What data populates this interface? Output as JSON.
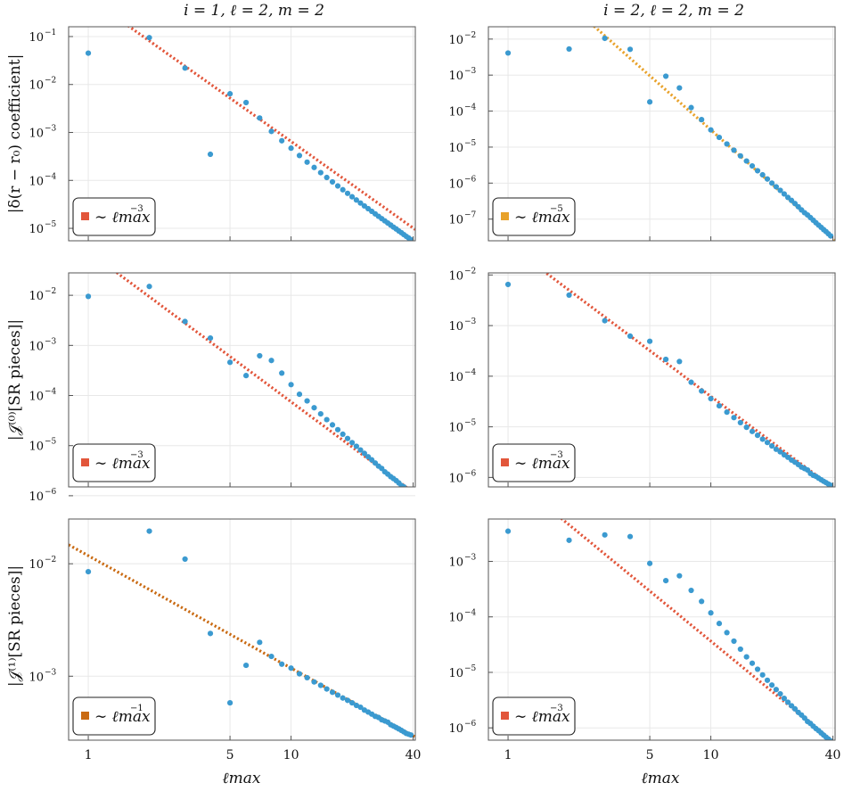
{
  "figure": {
    "col_titles": [
      "i = 1, ℓ = 2, m = 2",
      "i = 2, ℓ = 2, m = 2"
    ],
    "row_ylabels": [
      "|δ(r − r₀) coefficient|",
      "|𝒥⁽⁰⁾[SR pieces]|",
      "|𝒥⁽¹⁾[SR pieces]|"
    ],
    "xlabel": "ℓmax",
    "xticks": [
      "1",
      "5",
      "10",
      "40"
    ],
    "colors": {
      "points": "#3b9ad0",
      "fit_red": "#e2563b",
      "fit_orange": "#e8a22b",
      "fit_brown": "#c96a12",
      "grid": "#e8e8e8",
      "frame": "#555555"
    }
  },
  "chart_data": [
    {
      "type": "scatter",
      "panel": "top-left",
      "title": "i = 1, ℓ = 2, m = 2",
      "ylabel": "|δ(r − r₀) coefficient|",
      "xlabel": "",
      "xscale": "log",
      "yscale": "log",
      "xlim": [
        0.8,
        41
      ],
      "ylim": [
        5.5e-06,
        0.16
      ],
      "yticks": [
        {
          "v": 1e-05,
          "e": "−5"
        },
        {
          "v": 0.0001,
          "e": "−4"
        },
        {
          "v": 0.001,
          "e": "−3"
        },
        {
          "v": 0.01,
          "e": "−2"
        },
        {
          "v": 0.1,
          "e": "−1"
        }
      ],
      "x": [
        1,
        2,
        3,
        4,
        5,
        6,
        7,
        8,
        9,
        10,
        11,
        12,
        13,
        14,
        15,
        16,
        17,
        18,
        19,
        20,
        21,
        22,
        23,
        24,
        25,
        26,
        27,
        28,
        29,
        30,
        31,
        32,
        33,
        34,
        35,
        36,
        37,
        38,
        39
      ],
      "y": [
        0.045,
        0.095,
        0.022,
        0.00035,
        0.0064,
        0.0042,
        0.002,
        0.00105,
        0.00067,
        0.00047,
        0.00033,
        0.00024,
        0.000186,
        0.000145,
        0.000115,
        9.3e-05,
        7.65e-05,
        6.38e-05,
        5.37e-05,
        4.55e-05,
        3.9e-05,
        3.37e-05,
        2.93e-05,
        2.57e-05,
        2.26e-05,
        2e-05,
        1.78e-05,
        1.59e-05,
        1.43e-05,
        1.29e-05,
        1.17e-05,
        1.06e-05,
        9.7e-06,
        8.8e-06,
        8.1e-06,
        7.4e-06,
        6.8e-06,
        6.3e-06,
        5.8e-06
      ],
      "fit": {
        "exponent": -3,
        "coef": 0.65,
        "color": "#e2563b",
        "label": "∼ ℓmax",
        "label_exp": "−3"
      }
    },
    {
      "type": "scatter",
      "panel": "top-right",
      "title": "i = 2, ℓ = 2, m = 2",
      "ylabel": "",
      "xlabel": "",
      "xscale": "log",
      "yscale": "log",
      "xlim": [
        0.8,
        41
      ],
      "ylim": [
        2.5e-08,
        0.022
      ],
      "yticks": [
        {
          "v": 1e-07,
          "e": "−7"
        },
        {
          "v": 1e-06,
          "e": "−6"
        },
        {
          "v": 1e-05,
          "e": "−5"
        },
        {
          "v": 0.0001,
          "e": "−4"
        },
        {
          "v": 0.001,
          "e": "−3"
        },
        {
          "v": 0.01,
          "e": "−2"
        }
      ],
      "x": [
        1,
        2,
        3,
        4,
        5,
        6,
        7,
        8,
        9,
        10,
        11,
        12,
        13,
        14,
        15,
        16,
        17,
        18,
        19,
        20,
        21,
        22,
        23,
        24,
        25,
        26,
        27,
        28,
        29,
        30,
        31,
        32,
        33,
        34,
        35,
        36,
        37,
        38,
        39
      ],
      "y": [
        0.0041,
        0.0053,
        0.0105,
        0.0052,
        0.00018,
        0.00093,
        0.00044,
        0.000125,
        5.8e-05,
        3e-05,
        1.86e-05,
        1.22e-05,
        8.2e-06,
        5.7e-06,
        4.1e-06,
        3e-06,
        2.2e-06,
        1.7e-06,
        1.3e-06,
        1e-06,
        7.9e-07,
        6.3e-07,
        5e-07,
        4e-07,
        3.3e-07,
        2.7e-07,
        2.2e-07,
        1.8e-07,
        1.5e-07,
        1.3e-07,
        1.1e-07,
        9.3e-08,
        7.9e-08,
        6.8e-08,
        5.9e-08,
        5.1e-08,
        4.5e-08,
        3.9e-08,
        3.4e-08
      ],
      "fit": {
        "exponent": -5,
        "coef": 3.0,
        "color": "#e8a22b",
        "label": "∼ ℓmax",
        "label_exp": "−5"
      }
    },
    {
      "type": "scatter",
      "panel": "middle-left",
      "title": "",
      "ylabel": "|𝒥⁽⁰⁾[SR pieces]|",
      "xlabel": "",
      "xscale": "log",
      "yscale": "log",
      "xlim": [
        0.8,
        41
      ],
      "ylim": [
        1.5e-06,
        0.028
      ],
      "yticks": [
        {
          "v": 1e-06,
          "e": "−6"
        },
        {
          "v": 1e-05,
          "e": "−5"
        },
        {
          "v": 0.0001,
          "e": "−4"
        },
        {
          "v": 0.001,
          "e": "−3"
        },
        {
          "v": 0.01,
          "e": "−2"
        }
      ],
      "x": [
        1,
        2,
        3,
        4,
        5,
        6,
        7,
        8,
        9,
        10,
        11,
        12,
        13,
        14,
        15,
        16,
        17,
        18,
        19,
        20,
        21,
        22,
        23,
        24,
        25,
        26,
        27,
        28,
        29,
        30,
        31,
        32,
        33,
        34,
        35,
        36,
        37,
        38,
        39
      ],
      "y": [
        0.0095,
        0.015,
        0.003,
        0.0014,
        0.00046,
        0.00025,
        0.00062,
        0.0005,
        0.00028,
        0.000165,
        0.000106,
        7.8e-05,
        5.7e-05,
        4.3e-05,
        3.3e-05,
        2.6e-05,
        2.08e-05,
        1.69e-05,
        1.39e-05,
        1.15e-05,
        9.7e-06,
        8.2e-06,
        7e-06,
        6e-06,
        5.2e-06,
        4.5e-06,
        3.9e-06,
        3.5e-06,
        3e-06,
        2.7e-06,
        2.4e-06,
        2.2e-06,
        2e-06,
        1.8e-06,
        1.6e-06,
        1.5e-06,
        1.3e-06,
        1.2e-06,
        1.1e-06
      ],
      "fit": {
        "exponent": -3,
        "coef": 0.075,
        "color": "#e2563b",
        "label": "∼ ℓmax",
        "label_exp": "−3"
      }
    },
    {
      "type": "scatter",
      "panel": "middle-right",
      "title": "",
      "ylabel": "",
      "xlabel": "",
      "xscale": "log",
      "yscale": "log",
      "xlim": [
        0.8,
        41
      ],
      "ylim": [
        6.5e-07,
        0.011
      ],
      "yticks": [
        {
          "v": 1e-06,
          "e": "−6"
        },
        {
          "v": 1e-05,
          "e": "−5"
        },
        {
          "v": 0.0001,
          "e": "−4"
        },
        {
          "v": 0.001,
          "e": "−3"
        },
        {
          "v": 0.01,
          "e": "−2"
        }
      ],
      "x": [
        1,
        2,
        3,
        4,
        5,
        6,
        7,
        8,
        9,
        10,
        11,
        12,
        13,
        14,
        15,
        16,
        17,
        18,
        19,
        20,
        21,
        22,
        23,
        24,
        25,
        26,
        27,
        28,
        29,
        30,
        31,
        32,
        33,
        34,
        35,
        36,
        37,
        38,
        39
      ],
      "y": [
        0.0065,
        0.004,
        0.00125,
        0.00062,
        0.00049,
        0.000215,
        0.000195,
        7.6e-05,
        5.1e-05,
        3.6e-05,
        2.6e-05,
        1.95e-05,
        1.52e-05,
        1.21e-05,
        9.8e-06,
        8.1e-06,
        6.8e-06,
        5.7e-06,
        4.9e-06,
        4.2e-06,
        3.6e-06,
        3.2e-06,
        2.8e-06,
        2.5e-06,
        2.2e-06,
        2e-06,
        1.8e-06,
        1.6e-06,
        1.5e-06,
        1.4e-06,
        1.2e-06,
        1.1e-06,
        1.05e-06,
        9.7e-07,
        9e-07,
        8.4e-07,
        7.9e-07,
        7.4e-07,
        7e-07
      ],
      "fit": {
        "exponent": -3,
        "coef": 0.04,
        "color": "#e2563b",
        "label": "∼ ℓmax",
        "label_exp": "−3"
      }
    },
    {
      "type": "scatter",
      "panel": "bottom-left",
      "title": "",
      "ylabel": "|𝒥⁽¹⁾[SR pieces]|",
      "xlabel": "ℓmax",
      "xscale": "log",
      "yscale": "log",
      "xlim": [
        0.8,
        41
      ],
      "ylim": [
        0.00027,
        0.025
      ],
      "yticks": [
        {
          "v": 0.001,
          "e": "−3"
        },
        {
          "v": 0.01,
          "e": "−2"
        }
      ],
      "x": [
        1,
        2,
        3,
        4,
        5,
        6,
        7,
        8,
        9,
        10,
        11,
        12,
        13,
        14,
        15,
        16,
        17,
        18,
        19,
        20,
        21,
        22,
        23,
        24,
        25,
        26,
        27,
        28,
        29,
        30,
        31,
        32,
        33,
        34,
        35,
        36,
        37,
        38,
        39
      ],
      "y": [
        0.0085,
        0.0195,
        0.011,
        0.0024,
        0.00058,
        0.00125,
        0.002,
        0.0015,
        0.00128,
        0.00118,
        0.00105,
        0.00097,
        0.00089,
        0.00083,
        0.00077,
        0.00072,
        0.00068,
        0.00064,
        0.00061,
        0.00058,
        0.00055,
        0.00053,
        0.0005,
        0.00048,
        0.00046,
        0.00044,
        0.00043,
        0.00041,
        0.0004,
        0.00039,
        0.00037,
        0.00036,
        0.00035,
        0.00034,
        0.00033,
        0.00032,
        0.00031,
        0.000305,
        0.0003
      ],
      "fit": {
        "exponent": -1,
        "coef": 0.0118,
        "color": "#c96a12",
        "label": "∼ ℓmax",
        "label_exp": "−1"
      }
    },
    {
      "type": "scatter",
      "panel": "bottom-right",
      "title": "",
      "ylabel": "",
      "xlabel": "ℓmax",
      "xscale": "log",
      "yscale": "log",
      "xlim": [
        0.8,
        41
      ],
      "ylim": [
        6e-07,
        0.0058
      ],
      "yticks": [
        {
          "v": 1e-06,
          "e": "−6"
        },
        {
          "v": 1e-05,
          "e": "−5"
        },
        {
          "v": 0.0001,
          "e": "−4"
        },
        {
          "v": 0.001,
          "e": "−3"
        }
      ],
      "x": [
        1,
        2,
        3,
        4,
        5,
        6,
        7,
        8,
        9,
        10,
        11,
        12,
        13,
        14,
        15,
        16,
        17,
        18,
        19,
        20,
        21,
        22,
        23,
        24,
        25,
        26,
        27,
        28,
        29,
        30,
        31,
        32,
        33,
        34,
        35,
        36,
        37,
        38,
        39
      ],
      "y": [
        0.0035,
        0.0024,
        0.003,
        0.0028,
        0.00092,
        0.00045,
        0.00055,
        0.0003,
        0.00019,
        0.000118,
        7.6e-05,
        5.2e-05,
        3.65e-05,
        2.62e-05,
        1.9e-05,
        1.46e-05,
        1.14e-05,
        9e-06,
        7.2e-06,
        5.9e-06,
        4.9e-06,
        4.1e-06,
        3.4e-06,
        2.9e-06,
        2.5e-06,
        2.2e-06,
        1.9e-06,
        1.7e-06,
        1.5e-06,
        1.3e-06,
        1.2e-06,
        1.07e-06,
        9.7e-07,
        8.9e-07,
        8.1e-07,
        7.4e-07,
        6.8e-07,
        6.3e-07,
        5.8e-07
      ],
      "fit": {
        "exponent": -3,
        "coef": 0.0365,
        "color": "#e2563b",
        "label": "∼ ℓmax",
        "label_exp": "−3"
      }
    }
  ]
}
